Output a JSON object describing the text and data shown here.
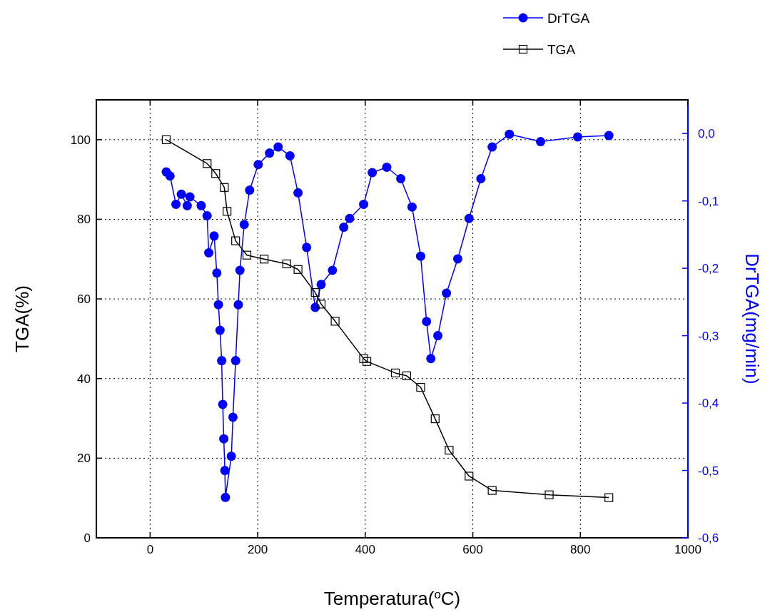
{
  "chart_data": {
    "type": "line",
    "xlabel": "Temperatura($^{o}$C)",
    "ylabel": "TGA(%)",
    "y2label": "DrTGA(mg/min)",
    "xlim": [
      -100,
      1000
    ],
    "xticks": [
      0,
      200,
      400,
      600,
      800,
      1000
    ],
    "ylim": [
      0,
      110
    ],
    "yticks": [
      0,
      20,
      40,
      60,
      80,
      100
    ],
    "y2lim": [
      -0.6,
      0.05
    ],
    "y2ticks": [
      {
        "value": 0,
        "label": "0,0"
      },
      {
        "value": -0.1,
        "label": "-0,1"
      },
      {
        "value": -0.2,
        "label": "-0,2"
      },
      {
        "value": -0.3,
        "label": "-0,3"
      },
      {
        "value": -0.4,
        "label": "-0,4"
      },
      {
        "value": -0.5,
        "label": "-0,5"
      },
      {
        "value": -0.6,
        "label": "-0,6"
      }
    ],
    "grid": true,
    "legend": "top right",
    "line_style": "solid",
    "series": [
      {
        "name": "DrTGA",
        "color": "#0000ff",
        "axis": "y2",
        "marker": "circle",
        "x": [
          30,
          37,
          48,
          58,
          69,
          74,
          95,
          106,
          109,
          119,
          124,
          127,
          130,
          133,
          135,
          137,
          139,
          140,
          151,
          154,
          159,
          164,
          167,
          175,
          185,
          201,
          222,
          238,
          260,
          275,
          291,
          307,
          318,
          339,
          360,
          371,
          397,
          413,
          440,
          466,
          487,
          503,
          514,
          522,
          535,
          551,
          572,
          593,
          615,
          636,
          668,
          726,
          795,
          853
        ],
        "values": [
          -0.057,
          -0.063,
          -0.105,
          -0.09,
          -0.107,
          -0.094,
          -0.107,
          -0.122,
          -0.177,
          -0.152,
          -0.207,
          -0.254,
          -0.292,
          -0.337,
          -0.402,
          -0.453,
          -0.5,
          -0.54,
          -0.479,
          -0.421,
          -0.337,
          -0.254,
          -0.203,
          -0.135,
          -0.084,
          -0.046,
          -0.029,
          -0.02,
          -0.033,
          -0.088,
          -0.169,
          -0.258,
          -0.224,
          -0.203,
          -0.139,
          -0.126,
          -0.105,
          -0.058,
          -0.05,
          -0.067,
          -0.109,
          -0.182,
          -0.279,
          -0.334,
          -0.3,
          -0.237,
          -0.186,
          -0.126,
          -0.067,
          -0.02,
          -0.001,
          -0.012,
          -0.005,
          -0.003
        ]
      },
      {
        "name": "TGA",
        "color": "#000000",
        "marker": "square",
        "x": [
          30,
          106,
          122,
          138,
          143,
          159,
          180,
          212,
          254,
          275,
          307,
          318,
          344,
          397,
          403,
          456,
          477,
          503,
          530,
          556,
          593,
          636,
          742,
          853
        ],
        "values": [
          100,
          94,
          91.5,
          88,
          82,
          74.6,
          71,
          70,
          68.8,
          67.4,
          61.6,
          58.7,
          54.4,
          45,
          44.3,
          41.4,
          40.7,
          37.8,
          29.9,
          22,
          15.5,
          11.9,
          10.8,
          10.1
        ]
      }
    ]
  }
}
